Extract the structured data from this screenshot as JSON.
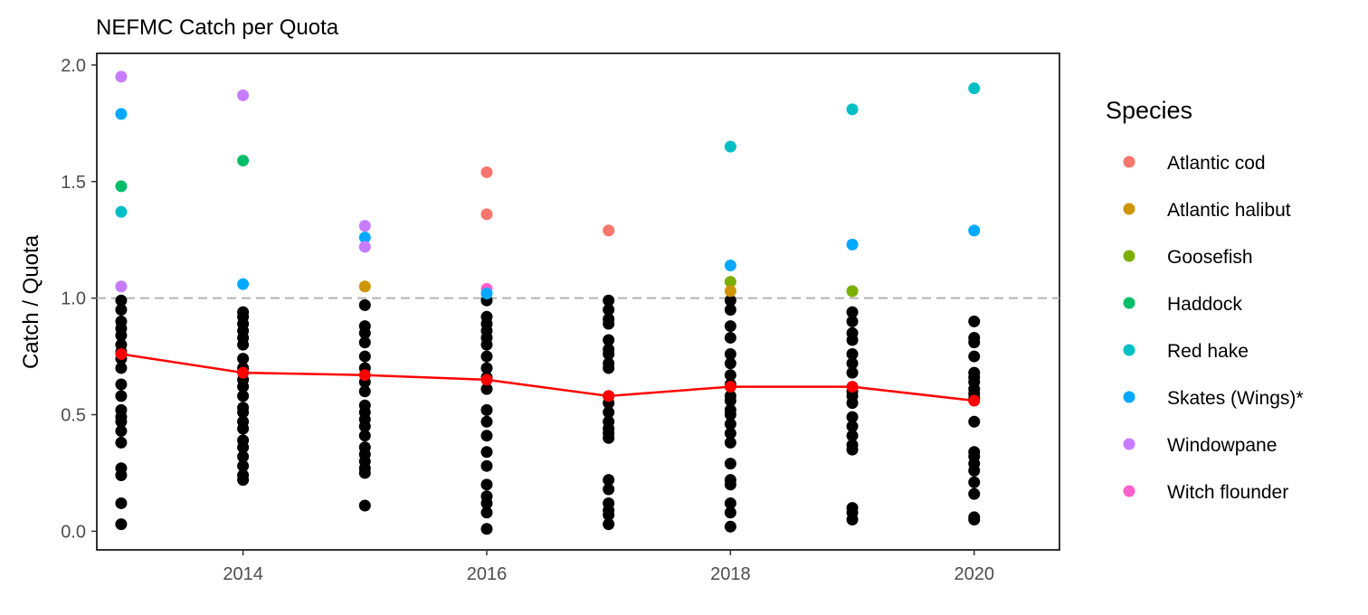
{
  "chart_data": {
    "type": "scatter",
    "title": "NEFMC Catch per Quota",
    "xlabel": "",
    "ylabel": "Catch / Quota",
    "xlim": [
      2012.8,
      2020.7
    ],
    "ylim": [
      -0.08,
      2.05
    ],
    "x_ticks": [
      2014,
      2016,
      2018,
      2020
    ],
    "x_tick_labels": [
      "2014",
      "2016",
      "2018",
      "2020"
    ],
    "y_ticks": [
      0.0,
      0.5,
      1.0,
      1.5,
      2.0
    ],
    "y_tick_labels": [
      "0.0",
      "0.5",
      "1.0",
      "1.5",
      "2.0"
    ],
    "grid": false,
    "reference_line": {
      "y": 1.0,
      "style": "dashed",
      "color": "#b3b3b3"
    },
    "legend": {
      "title": "Species",
      "position": "right",
      "items": [
        {
          "label": "Atlantic cod",
          "color": "#F8766D"
        },
        {
          "label": "Atlantic halibut",
          "color": "#CD9600"
        },
        {
          "label": "Goosefish",
          "color": "#7CAE00"
        },
        {
          "label": "Haddock",
          "color": "#00BE67"
        },
        {
          "label": "Red hake",
          "color": "#00BFC4"
        },
        {
          "label": "Skates (Wings)*",
          "color": "#00A9FF"
        },
        {
          "label": "Windowpane",
          "color": "#C77CFF"
        },
        {
          "label": "Witch flounder",
          "color": "#FF61CC"
        }
      ]
    },
    "highlighted_points": [
      {
        "x": 2013,
        "y": 1.95,
        "species": "Windowpane"
      },
      {
        "x": 2013,
        "y": 1.79,
        "species": "Skates (Wings)*"
      },
      {
        "x": 2013,
        "y": 1.48,
        "species": "Haddock"
      },
      {
        "x": 2013,
        "y": 1.37,
        "species": "Red hake"
      },
      {
        "x": 2013,
        "y": 1.05,
        "species": "Windowpane"
      },
      {
        "x": 2014,
        "y": 1.87,
        "species": "Windowpane"
      },
      {
        "x": 2014,
        "y": 1.59,
        "species": "Haddock"
      },
      {
        "x": 2014,
        "y": 1.06,
        "species": "Skates (Wings)*"
      },
      {
        "x": 2015,
        "y": 1.31,
        "species": "Windowpane"
      },
      {
        "x": 2015,
        "y": 1.26,
        "species": "Skates (Wings)*"
      },
      {
        "x": 2015,
        "y": 1.22,
        "species": "Windowpane"
      },
      {
        "x": 2015,
        "y": 1.05,
        "species": "Atlantic halibut"
      },
      {
        "x": 2016,
        "y": 1.54,
        "species": "Atlantic cod"
      },
      {
        "x": 2016,
        "y": 1.36,
        "species": "Atlantic cod"
      },
      {
        "x": 2016,
        "y": 1.04,
        "species": "Witch flounder"
      },
      {
        "x": 2016,
        "y": 1.02,
        "species": "Skates (Wings)*"
      },
      {
        "x": 2017,
        "y": 1.29,
        "species": "Atlantic cod"
      },
      {
        "x": 2018,
        "y": 1.65,
        "species": "Red hake"
      },
      {
        "x": 2018,
        "y": 1.14,
        "species": "Skates (Wings)*"
      },
      {
        "x": 2018,
        "y": 1.07,
        "species": "Goosefish"
      },
      {
        "x": 2018,
        "y": 1.03,
        "species": "Atlantic halibut"
      },
      {
        "x": 2019,
        "y": 1.81,
        "species": "Red hake"
      },
      {
        "x": 2019,
        "y": 1.23,
        "species": "Skates (Wings)*"
      },
      {
        "x": 2019,
        "y": 1.03,
        "species": "Goosefish"
      },
      {
        "x": 2020,
        "y": 1.9,
        "species": "Red hake"
      },
      {
        "x": 2020,
        "y": 1.29,
        "species": "Skates (Wings)*"
      }
    ],
    "other_points": [
      {
        "x": 2013,
        "values": [
          0.99,
          0.95,
          0.9,
          0.87,
          0.84,
          0.8,
          0.77,
          0.74,
          0.7,
          0.63,
          0.58,
          0.52,
          0.49,
          0.47,
          0.43,
          0.38,
          0.27,
          0.24,
          0.12,
          0.03
        ]
      },
      {
        "x": 2014,
        "values": [
          0.94,
          0.92,
          0.89,
          0.86,
          0.83,
          0.8,
          0.74,
          0.7,
          0.65,
          0.62,
          0.58,
          0.53,
          0.51,
          0.47,
          0.44,
          0.39,
          0.36,
          0.32,
          0.28,
          0.24,
          0.22
        ]
      },
      {
        "x": 2015,
        "values": [
          0.97,
          0.88,
          0.85,
          0.81,
          0.75,
          0.7,
          0.64,
          0.6,
          0.54,
          0.51,
          0.48,
          0.45,
          0.41,
          0.36,
          0.33,
          0.3,
          0.27,
          0.25,
          0.11
        ]
      },
      {
        "x": 2016,
        "values": [
          0.99,
          0.92,
          0.89,
          0.86,
          0.83,
          0.8,
          0.75,
          0.7,
          0.66,
          0.61,
          0.52,
          0.47,
          0.41,
          0.34,
          0.28,
          0.2,
          0.15,
          0.12,
          0.08,
          0.01
        ]
      },
      {
        "x": 2017,
        "values": [
          0.99,
          0.95,
          0.91,
          0.89,
          0.82,
          0.78,
          0.76,
          0.72,
          0.7,
          0.58,
          0.55,
          0.51,
          0.47,
          0.44,
          0.42,
          0.4,
          0.22,
          0.18,
          0.12,
          0.09,
          0.07,
          0.03
        ]
      },
      {
        "x": 2018,
        "values": [
          0.99,
          0.95,
          0.88,
          0.83,
          0.76,
          0.72,
          0.67,
          0.63,
          0.58,
          0.56,
          0.52,
          0.5,
          0.46,
          0.42,
          0.38,
          0.29,
          0.22,
          0.2,
          0.12,
          0.08,
          0.02
        ]
      },
      {
        "x": 2019,
        "values": [
          0.94,
          0.9,
          0.85,
          0.82,
          0.76,
          0.72,
          0.68,
          0.6,
          0.58,
          0.55,
          0.49,
          0.45,
          0.41,
          0.37,
          0.35,
          0.1,
          0.08,
          0.05
        ]
      },
      {
        "x": 2020,
        "values": [
          0.9,
          0.83,
          0.81,
          0.75,
          0.68,
          0.66,
          0.64,
          0.61,
          0.59,
          0.57,
          0.47,
          0.34,
          0.32,
          0.29,
          0.26,
          0.21,
          0.16,
          0.06,
          0.05
        ]
      }
    ],
    "mean_series": {
      "color": "#FF0000",
      "x": [
        2013,
        2014,
        2015,
        2016,
        2017,
        2018,
        2019,
        2020
      ],
      "y": [
        0.76,
        0.68,
        0.67,
        0.65,
        0.58,
        0.62,
        0.62,
        0.56
      ]
    },
    "other_points_color": "#000000"
  }
}
